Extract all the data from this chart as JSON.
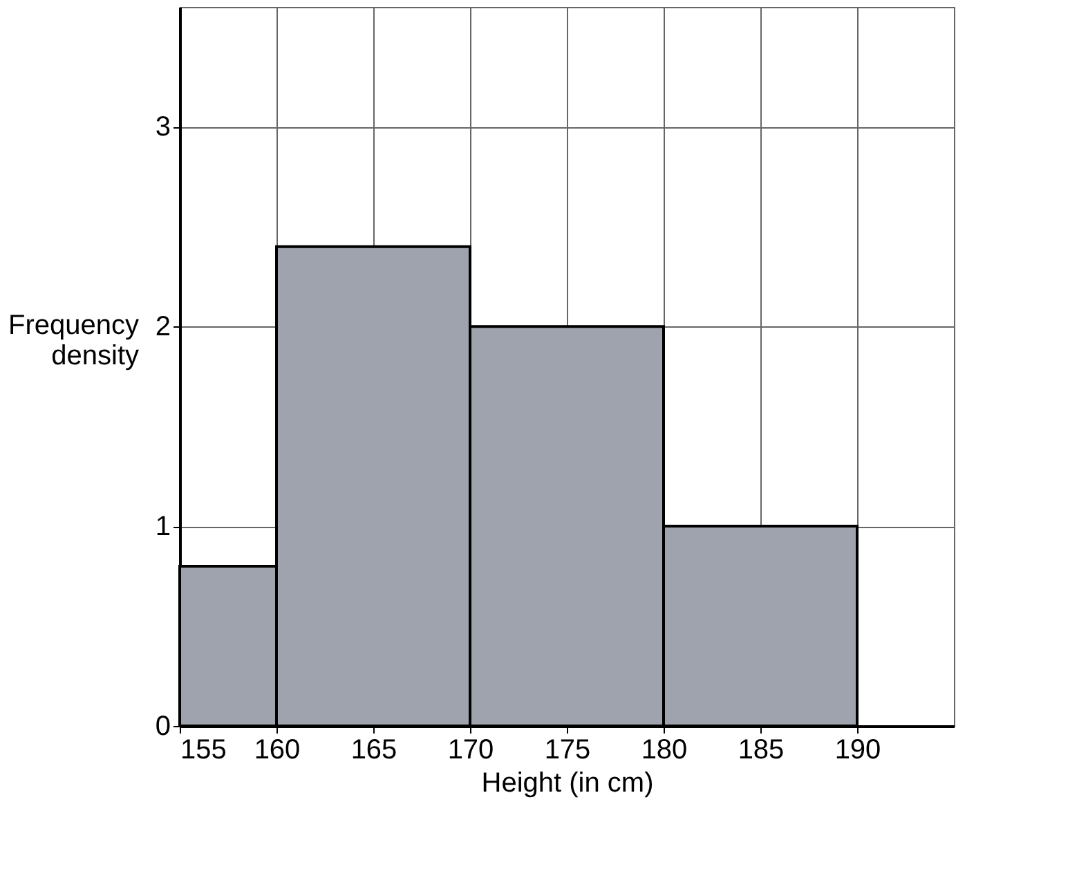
{
  "chart_data": {
    "type": "histogram",
    "xlabel": "Height (in cm)",
    "ylabel": "Frequency density",
    "bins": [
      155,
      160,
      170,
      180,
      190
    ],
    "values": [
      0.8,
      2.4,
      2.0,
      1.0
    ],
    "color": "#9ea3ad",
    "xlim": [
      155,
      195
    ],
    "xticks": [
      155,
      160,
      165,
      170,
      175,
      180,
      185,
      190
    ],
    "ylim": [
      0,
      3.6
    ],
    "yticks": [
      0,
      1,
      2,
      3
    ],
    "grid": true
  }
}
